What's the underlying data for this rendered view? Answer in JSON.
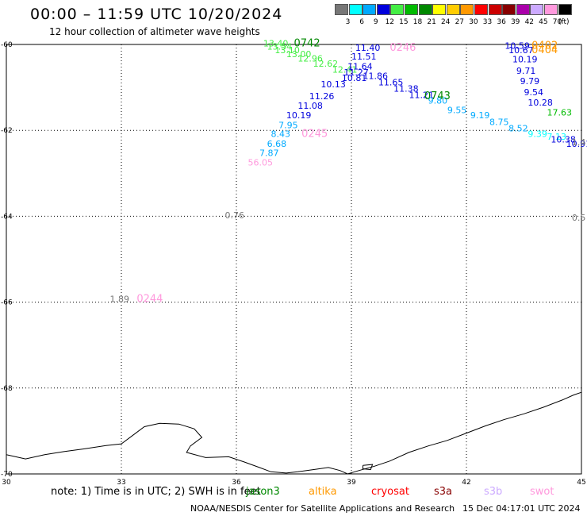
{
  "header": {
    "title": "00:00 – 11:59 UTC 10/20/2024",
    "subtitle": "12 hour collection of altimeter wave heights"
  },
  "scale": {
    "unit": "(ft)",
    "bins": [
      {
        "label": "3",
        "color": "#777777"
      },
      {
        "label": "6",
        "color": "#00ffff"
      },
      {
        "label": "9",
        "color": "#00aaff"
      },
      {
        "label": "12",
        "color": "#0000dd"
      },
      {
        "label": "15",
        "color": "#44ee44"
      },
      {
        "label": "18",
        "color": "#00bb00"
      },
      {
        "label": "21",
        "color": "#008800"
      },
      {
        "label": "24",
        "color": "#ffff00"
      },
      {
        "label": "27",
        "color": "#ffcc00"
      },
      {
        "label": "30",
        "color": "#ff9900"
      },
      {
        "label": "33",
        "color": "#ff0000"
      },
      {
        "label": "36",
        "color": "#cc0000"
      },
      {
        "label": "39",
        "color": "#880000"
      },
      {
        "label": "42",
        "color": "#aa00aa"
      },
      {
        "label": "45",
        "color": "#ccaaff"
      },
      {
        "label": "70",
        "color": "#ff99dd"
      },
      {
        "label": "",
        "color": "#000000"
      }
    ]
  },
  "map": {
    "lon_range": [
      30,
      45
    ],
    "lat_range": [
      -60,
      -70
    ],
    "lon_ticks": [
      {
        "lon": 30,
        "label": "30"
      },
      {
        "lon": 33,
        "label": "33"
      },
      {
        "lon": 36,
        "label": "36"
      },
      {
        "lon": 39,
        "label": "39"
      },
      {
        "lon": 42,
        "label": "42"
      },
      {
        "lon": 45,
        "label": "45"
      }
    ],
    "lat_ticks": [
      {
        "lat": -60,
        "label": "-60"
      },
      {
        "lat": -62,
        "label": "-62"
      },
      {
        "lat": -64,
        "label": "-64"
      },
      {
        "lat": -66,
        "label": "-66"
      },
      {
        "lat": -68,
        "label": "-68"
      },
      {
        "lat": -70,
        "label": "-70"
      }
    ],
    "coastline": [
      [
        30,
        -69.55
      ],
      [
        30.5,
        -69.65
      ],
      [
        31,
        -69.55
      ],
      [
        31.5,
        -69.48
      ],
      [
        32,
        -69.42
      ],
      [
        32.6,
        -69.34
      ],
      [
        33,
        -69.3
      ],
      [
        33.3,
        -69.1
      ],
      [
        33.6,
        -68.9
      ],
      [
        34,
        -68.82
      ],
      [
        34.5,
        -68.84
      ],
      [
        34.9,
        -68.95
      ],
      [
        35.1,
        -69.15
      ],
      [
        34.8,
        -69.35
      ],
      [
        34.7,
        -69.5
      ],
      [
        35.2,
        -69.62
      ],
      [
        35.8,
        -69.6
      ],
      [
        36.2,
        -69.72
      ],
      [
        36.6,
        -69.85
      ],
      [
        36.9,
        -69.95
      ],
      [
        37.3,
        -69.98
      ],
      [
        37.6,
        -69.95
      ],
      [
        38.0,
        -69.9
      ],
      [
        38.4,
        -69.85
      ],
      [
        38.7,
        -69.92
      ],
      [
        38.9,
        -70.0
      ],
      [
        39.2,
        -69.92
      ],
      [
        39.6,
        -69.82
      ],
      [
        40.0,
        -69.7
      ],
      [
        40.5,
        -69.5
      ],
      [
        41.0,
        -69.35
      ],
      [
        41.5,
        -69.22
      ],
      [
        42.0,
        -69.05
      ],
      [
        42.5,
        -68.88
      ],
      [
        43.0,
        -68.73
      ],
      [
        43.5,
        -68.6
      ],
      [
        44.0,
        -68.45
      ],
      [
        44.5,
        -68.28
      ],
      [
        44.8,
        -68.16
      ],
      [
        45,
        -68.1
      ]
    ],
    "island": [
      [
        39.3,
        -69.8
      ],
      [
        39.55,
        -69.78
      ],
      [
        39.5,
        -69.9
      ],
      [
        39.3,
        -69.88
      ],
      [
        39.3,
        -69.8
      ]
    ],
    "wave_labels": [
      {
        "text": "13.40",
        "lon": 36.7,
        "lat": -60.05,
        "color": "#44ee44"
      },
      {
        "text": "13.54",
        "lon": 36.8,
        "lat": -60.12,
        "color": "#44ee44"
      },
      {
        "text": "13.10",
        "lon": 37.0,
        "lat": -60.2,
        "color": "#44ee44"
      },
      {
        "text": "13.00",
        "lon": 37.3,
        "lat": -60.3,
        "color": "#44ee44"
      },
      {
        "text": "12.96",
        "lon": 37.6,
        "lat": -60.4,
        "color": "#44ee44"
      },
      {
        "text": "12.62",
        "lon": 38.0,
        "lat": -60.52,
        "color": "#44ee44"
      },
      {
        "text": "12.41",
        "lon": 38.5,
        "lat": -60.66,
        "color": "#44ee44"
      },
      {
        "text": "11.40",
        "lon": 39.1,
        "lat": -60.15,
        "color": "#0000dd"
      },
      {
        "text": "11.51",
        "lon": 39.0,
        "lat": -60.35,
        "color": "#0000dd"
      },
      {
        "text": "11.64",
        "lon": 38.9,
        "lat": -60.58,
        "color": "#0000dd"
      },
      {
        "text": "11.27",
        "lon": 38.8,
        "lat": -60.72,
        "color": "#0000dd"
      },
      {
        "text": "10.81",
        "lon": 38.75,
        "lat": -60.85,
        "color": "#0000dd"
      },
      {
        "text": "11.86",
        "lon": 39.3,
        "lat": -60.8,
        "color": "#0000dd"
      },
      {
        "text": "11.65",
        "lon": 39.7,
        "lat": -60.95,
        "color": "#0000dd"
      },
      {
        "text": "11.38",
        "lon": 40.1,
        "lat": -61.1,
        "color": "#0000dd"
      },
      {
        "text": "11.21",
        "lon": 40.5,
        "lat": -61.25,
        "color": "#0000dd"
      },
      {
        "text": "10.13",
        "lon": 38.2,
        "lat": -61.0,
        "color": "#0000dd"
      },
      {
        "text": "11.26",
        "lon": 37.9,
        "lat": -61.28,
        "color": "#0000dd"
      },
      {
        "text": "11.08",
        "lon": 37.6,
        "lat": -61.5,
        "color": "#0000dd"
      },
      {
        "text": "10.19",
        "lon": 37.3,
        "lat": -61.72,
        "color": "#0000dd"
      },
      {
        "text": "7.95",
        "lon": 37.1,
        "lat": -61.95,
        "color": "#00aaff"
      },
      {
        "text": "8.43",
        "lon": 36.9,
        "lat": -62.15,
        "color": "#00aaff"
      },
      {
        "text": "6.68",
        "lon": 36.8,
        "lat": -62.38,
        "color": "#00aaff"
      },
      {
        "text": "7.87",
        "lon": 36.6,
        "lat": -62.6,
        "color": "#00aaff"
      },
      {
        "text": "56.05",
        "lon": 36.3,
        "lat": -62.82,
        "color": "#ff99dd"
      },
      {
        "text": "9.80",
        "lon": 41.0,
        "lat": -61.38,
        "color": "#00aaff"
      },
      {
        "text": "9.55",
        "lon": 41.5,
        "lat": -61.6,
        "color": "#00aaff"
      },
      {
        "text": "9.19",
        "lon": 42.1,
        "lat": -61.72,
        "color": "#00aaff"
      },
      {
        "text": "8.75",
        "lon": 42.6,
        "lat": -61.88,
        "color": "#00aaff"
      },
      {
        "text": "8.52",
        "lon": 43.1,
        "lat": -62.02,
        "color": "#00aaff"
      },
      {
        "text": "9.39",
        "lon": 43.6,
        "lat": -62.15,
        "color": "#00ffff"
      },
      {
        "text": "7.13",
        "lon": 44.1,
        "lat": -62.22,
        "color": "#00ffff"
      },
      {
        "text": "10.38",
        "lon": 44.2,
        "lat": -62.28,
        "color": "#0000dd"
      },
      {
        "text": "10.91",
        "lon": 44.6,
        "lat": -62.38,
        "color": "#0000dd"
      },
      {
        "text": "10.59",
        "lon": 43.0,
        "lat": -60.1,
        "color": "#0000dd"
      },
      {
        "text": "10.67",
        "lon": 43.1,
        "lat": -60.2,
        "color": "#0000dd"
      },
      {
        "text": "10.19",
        "lon": 43.2,
        "lat": -60.42,
        "color": "#0000dd"
      },
      {
        "text": "9.71",
        "lon": 43.3,
        "lat": -60.68,
        "color": "#0000dd"
      },
      {
        "text": "9.79",
        "lon": 43.4,
        "lat": -60.92,
        "color": "#0000dd"
      },
      {
        "text": "9.54",
        "lon": 43.5,
        "lat": -61.18,
        "color": "#0000dd"
      },
      {
        "text": "10.28",
        "lon": 43.6,
        "lat": -61.42,
        "color": "#0000dd"
      },
      {
        "text": "17.63",
        "lon": 44.1,
        "lat": -61.65,
        "color": "#00bb00"
      },
      {
        "text": "1.4",
        "lon": 44.75,
        "lat": -62.35,
        "color": "#777777"
      },
      {
        "text": "0.5",
        "lon": 44.75,
        "lat": -64.1,
        "color": "#777777"
      },
      {
        "text": "0.76",
        "lon": 35.7,
        "lat": -64.05,
        "color": "#777777"
      },
      {
        "text": "1.89",
        "lon": 32.7,
        "lat": -66.0,
        "color": "#777777"
      }
    ],
    "pass_labels": [
      {
        "text": "0742",
        "lon": 37.5,
        "lat": -60.05,
        "color": "#008800"
      },
      {
        "text": "0246",
        "lon": 40.0,
        "lat": -60.15,
        "color": "#ff99dd"
      },
      {
        "text": "0743",
        "lon": 40.9,
        "lat": -61.28,
        "color": "#008800"
      },
      {
        "text": "0245",
        "lon": 37.7,
        "lat": -62.15,
        "color": "#ff99dd"
      },
      {
        "text": "0244",
        "lon": 33.4,
        "lat": -66.0,
        "color": "#ff99dd"
      },
      {
        "text": "0402",
        "lon": 43.7,
        "lat": -60.1,
        "color": "#ff9900"
      },
      {
        "text": "0404",
        "lon": 43.7,
        "lat": -60.2,
        "color": "#ff9900"
      }
    ]
  },
  "note": {
    "text": "note: 1) Time is in UTC; 2) SWH is in feet",
    "satellites": [
      {
        "name": "jason3",
        "color": "#008800"
      },
      {
        "name": "altika",
        "color": "#ff9900"
      },
      {
        "name": "cryosat",
        "color": "#ff0000"
      },
      {
        "name": "s3a",
        "color": "#880000"
      },
      {
        "name": "s3b",
        "color": "#ccaaff"
      },
      {
        "name": "swot",
        "color": "#ff99dd"
      }
    ]
  },
  "footer": {
    "credit": "NOAA/NESDIS Center for Satellite Applications and Research",
    "timestamp": "15 Dec 04:17:01 UTC 2024"
  }
}
